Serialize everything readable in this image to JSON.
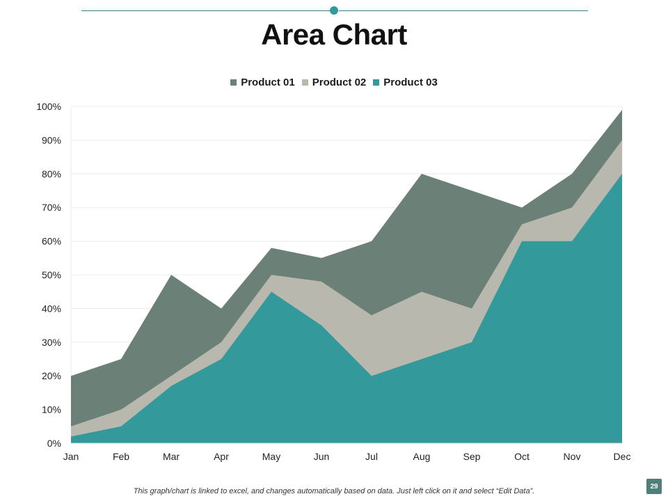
{
  "slide": {
    "title": "Area Chart",
    "footer_note": "This graph/chart is linked to excel, and changes automatically based on data. Just left click on it and select “Edit Data”.",
    "page_number": "29"
  },
  "colors": {
    "accent": "#33999b",
    "rule": "#3a7f80"
  },
  "chart_data": {
    "type": "area",
    "stacked": false,
    "categories": [
      "Jan",
      "Feb",
      "Mar",
      "Apr",
      "May",
      "Jun",
      "Jul",
      "Aug",
      "Sep",
      "Oct",
      "Nov",
      "Dec"
    ],
    "y_ticks": [
      "0%",
      "10%",
      "20%",
      "30%",
      "40%",
      "50%",
      "60%",
      "70%",
      "80%",
      "90%",
      "100%"
    ],
    "ylim": [
      0,
      100
    ],
    "grid": true,
    "legend_position": "top",
    "series": [
      {
        "name": "Product 01",
        "color": "#6b8178",
        "values": [
          20,
          25,
          50,
          40,
          58,
          55,
          60,
          80,
          75,
          70,
          80,
          99
        ]
      },
      {
        "name": "Product 02",
        "color": "#b8b8ae",
        "values": [
          5,
          10,
          20,
          30,
          50,
          48,
          38,
          45,
          40,
          65,
          70,
          90
        ]
      },
      {
        "name": "Product 03",
        "color": "#33999b",
        "values": [
          2,
          5,
          17,
          25,
          45,
          35,
          20,
          25,
          30,
          60,
          60,
          80
        ]
      }
    ]
  }
}
